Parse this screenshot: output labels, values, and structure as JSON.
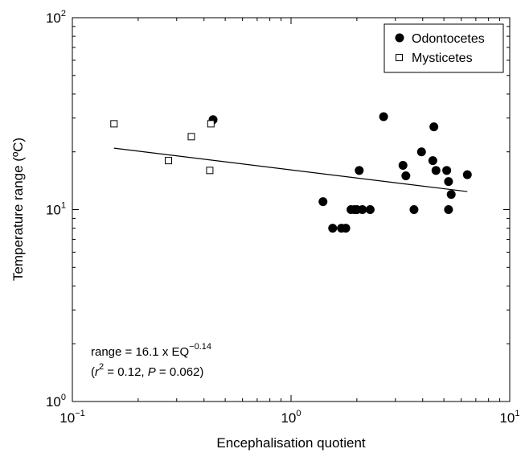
{
  "chart_data": {
    "type": "scatter",
    "xlabel": "Encephalisation quotient",
    "ylabel": "Temperature range (ºC)",
    "xscale": "log",
    "yscale": "log",
    "xlim": [
      0.1,
      10
    ],
    "ylim": [
      1,
      100
    ],
    "grid": false,
    "legend_position": "top-right",
    "x_ticks": [
      {
        "value": 0.1,
        "base": "10",
        "exp": "−1"
      },
      {
        "value": 1,
        "base": "10",
        "exp": "0"
      },
      {
        "value": 10,
        "base": "10",
        "exp": "1"
      }
    ],
    "y_ticks": [
      {
        "value": 1,
        "base": "10",
        "exp": "0"
      },
      {
        "value": 10,
        "base": "10",
        "exp": "1"
      },
      {
        "value": 100,
        "base": "10",
        "exp": "2"
      }
    ],
    "series": [
      {
        "name": "Odontocetes",
        "marker": "filled-circle",
        "color": "#000000",
        "points": [
          [
            0.44,
            29.4
          ],
          [
            1.4,
            11
          ],
          [
            1.55,
            8
          ],
          [
            1.7,
            8
          ],
          [
            1.78,
            8
          ],
          [
            1.88,
            10
          ],
          [
            1.95,
            10
          ],
          [
            2.0,
            10
          ],
          [
            2.05,
            16
          ],
          [
            2.12,
            10
          ],
          [
            2.3,
            10
          ],
          [
            2.65,
            30.5
          ],
          [
            3.25,
            17
          ],
          [
            3.35,
            15
          ],
          [
            3.65,
            10
          ],
          [
            3.95,
            20
          ],
          [
            4.45,
            18
          ],
          [
            4.5,
            27
          ],
          [
            4.6,
            16
          ],
          [
            5.15,
            16
          ],
          [
            5.25,
            14
          ],
          [
            5.25,
            10
          ],
          [
            5.4,
            12
          ],
          [
            6.4,
            15.2
          ]
        ]
      },
      {
        "name": "Mysticetes",
        "marker": "open-square",
        "color": "#000000",
        "points": [
          [
            0.155,
            28
          ],
          [
            0.275,
            18
          ],
          [
            0.35,
            24
          ],
          [
            0.425,
            16
          ],
          [
            0.43,
            28
          ]
        ]
      }
    ],
    "fit_line": {
      "intercept": 16.1,
      "exponent": -0.14,
      "x_range": [
        0.155,
        6.4
      ]
    },
    "annotation": {
      "line1_main": "range = 16.1 x EQ",
      "line1_exp": "−0.14",
      "line2_a": "(",
      "line2_r": "r",
      "line2_r_exp": "2",
      "line2_b": " = 0.12, ",
      "line2_p": "P",
      "line2_c": " = 0.062)"
    }
  }
}
